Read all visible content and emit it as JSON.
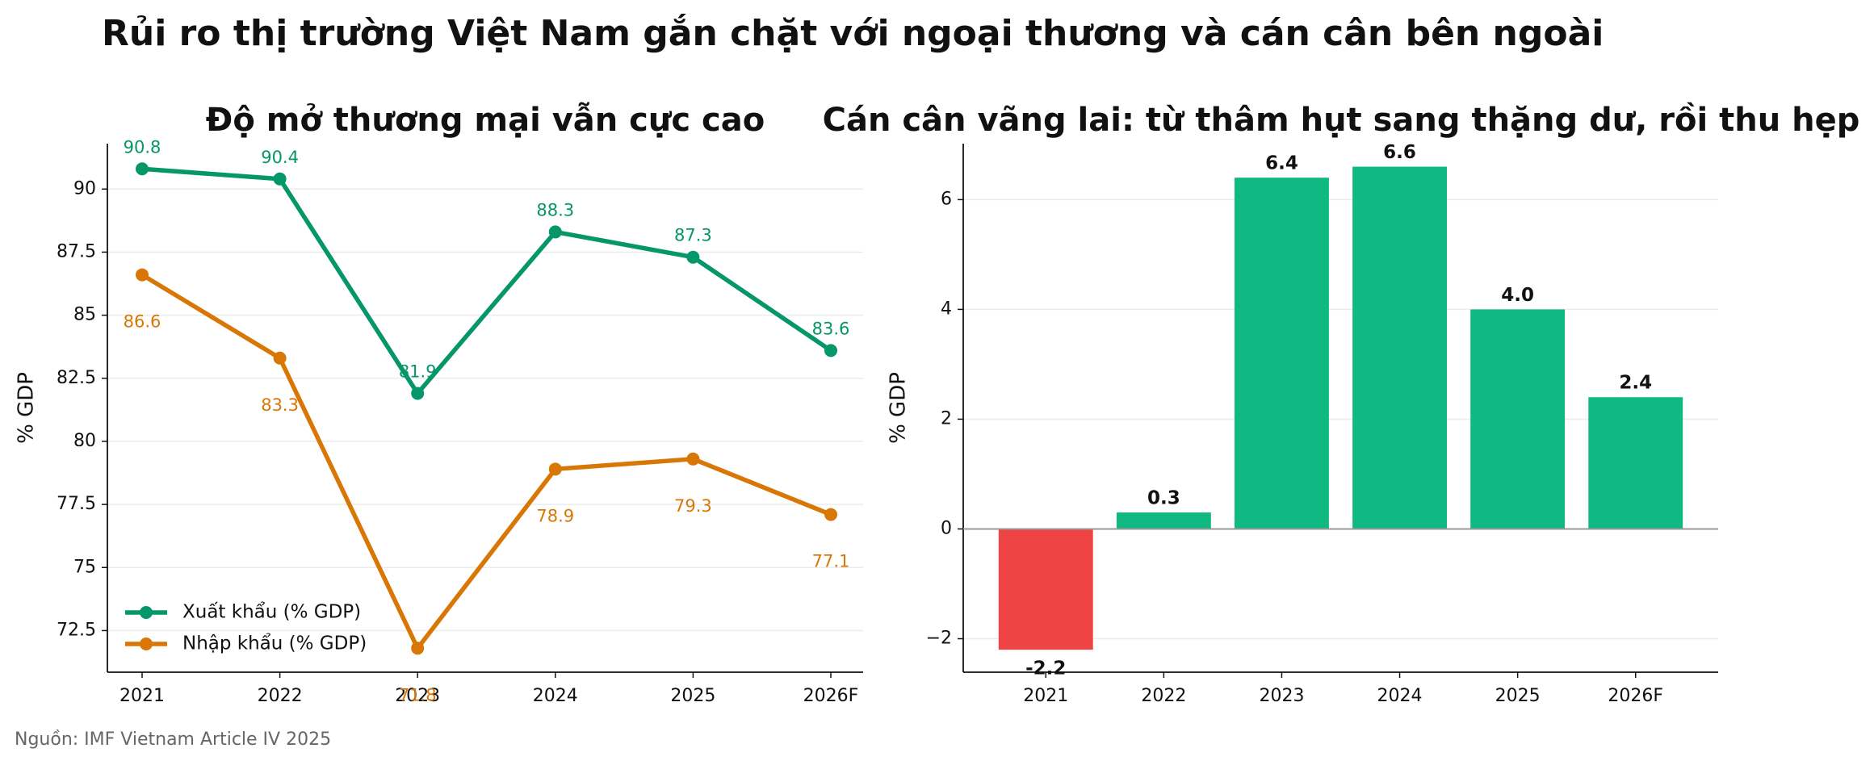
{
  "title": "Rủi ro thị trường Việt Nam gắn chặt với ngoại thương và cán cân bên ngoài",
  "source": "Nguồn: IMF Vietnam Article IV 2025",
  "chart_data": [
    {
      "type": "line",
      "title": "Độ mở thương mại vẫn cực cao",
      "y_label": "% GDP",
      "categories": [
        "2021",
        "2022",
        "2023",
        "2024",
        "2025",
        "2026F"
      ],
      "series": [
        {
          "name": "Xuất khẩu (% GDP)",
          "color": "#059669",
          "values": [
            90.8,
            90.4,
            81.9,
            88.3,
            87.3,
            83.6
          ]
        },
        {
          "name": "Nhập khẩu (% GDP)",
          "color": "#d97706",
          "values": [
            86.6,
            83.3,
            71.8,
            78.9,
            79.3,
            77.1
          ]
        }
      ],
      "ylim": [
        70.85,
        91.8
      ],
      "yticks": [
        72.5,
        75.0,
        77.5,
        80.0,
        82.5,
        85.0,
        87.5,
        90.0
      ],
      "grid": true,
      "legend": "lower left"
    },
    {
      "type": "bar",
      "title": "Cán cân vãng lai: từ thâm hụt sang thặng dư, rồi thu hẹp",
      "y_label": "% GDP",
      "categories": [
        "2021",
        "2022",
        "2023",
        "2024",
        "2025",
        "2026F"
      ],
      "values": [
        -2.2,
        0.3,
        6.4,
        6.6,
        4.0,
        2.4
      ],
      "value_labels": [
        "-2.2",
        "0.3",
        "6.4",
        "6.6",
        "4.0",
        "2.4"
      ],
      "colors": [
        "#ef4444",
        "#10b981",
        "#10b981",
        "#10b981",
        "#10b981",
        "#10b981"
      ],
      "ylim": [
        -2.61,
        7.02
      ],
      "yticks": [
        {
          "value": -2,
          "label": "−2"
        },
        0,
        2,
        4,
        6
      ],
      "grid": true
    }
  ]
}
